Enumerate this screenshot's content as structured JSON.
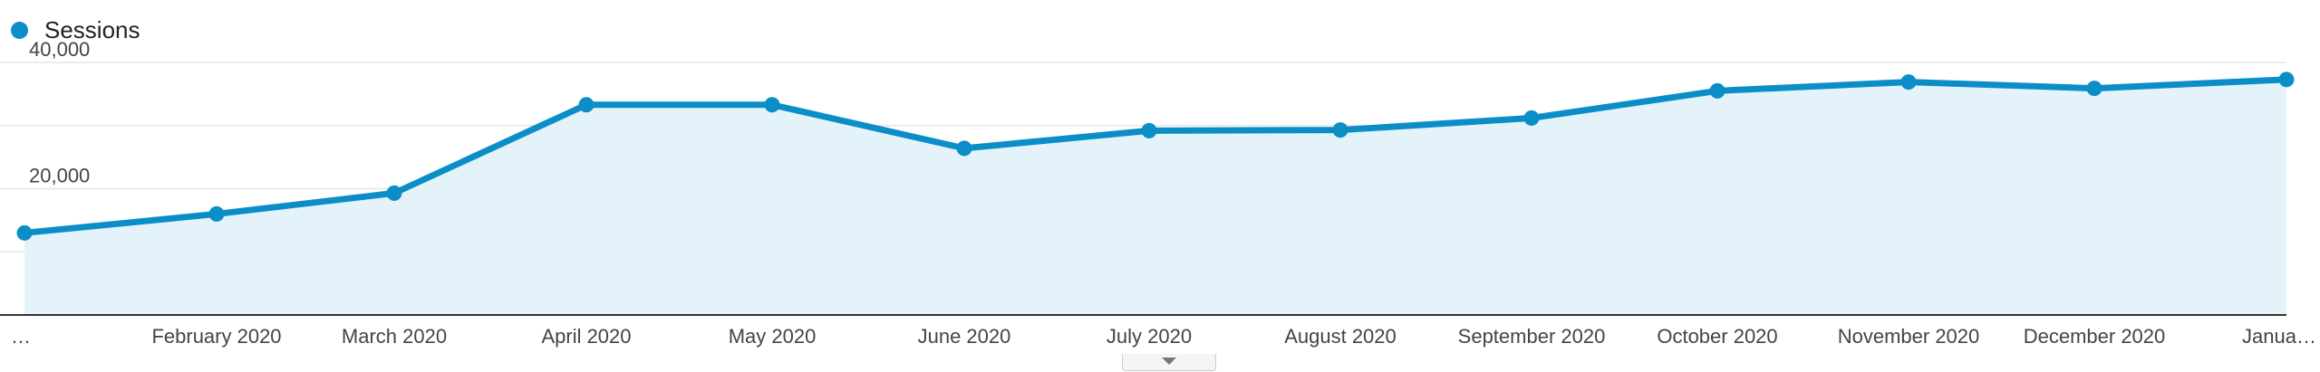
{
  "chart_data": {
    "type": "area",
    "series": [
      {
        "name": "Sessions",
        "color": "#0b8ec7",
        "values": [
          13000,
          16000,
          19300,
          33300,
          33300,
          26400,
          29200,
          29300,
          31200,
          35500,
          36900,
          35900,
          37300
        ]
      }
    ],
    "categories": [
      "…",
      "February 2020",
      "March 2020",
      "April 2020",
      "May 2020",
      "June 2020",
      "July 2020",
      "August 2020",
      "September 2020",
      "October 2020",
      "November 2020",
      "December 2020",
      "Janua…"
    ],
    "y_ticks": [
      {
        "value": 40000,
        "label": "40,000"
      },
      {
        "value": 20000,
        "label": "20,000"
      }
    ],
    "ylim": [
      0,
      40000
    ],
    "grid": true,
    "legend_position": "top-left",
    "title": "",
    "xlabel": "",
    "ylabel": ""
  },
  "colors": {
    "line": "#0b8ec7",
    "fill": "#e4f3fa",
    "grid": "#e6e6e6",
    "axis": "#333333"
  },
  "legend": {
    "label": "Sessions"
  },
  "scroll_handle": {
    "icon": "chevron-down-icon"
  }
}
